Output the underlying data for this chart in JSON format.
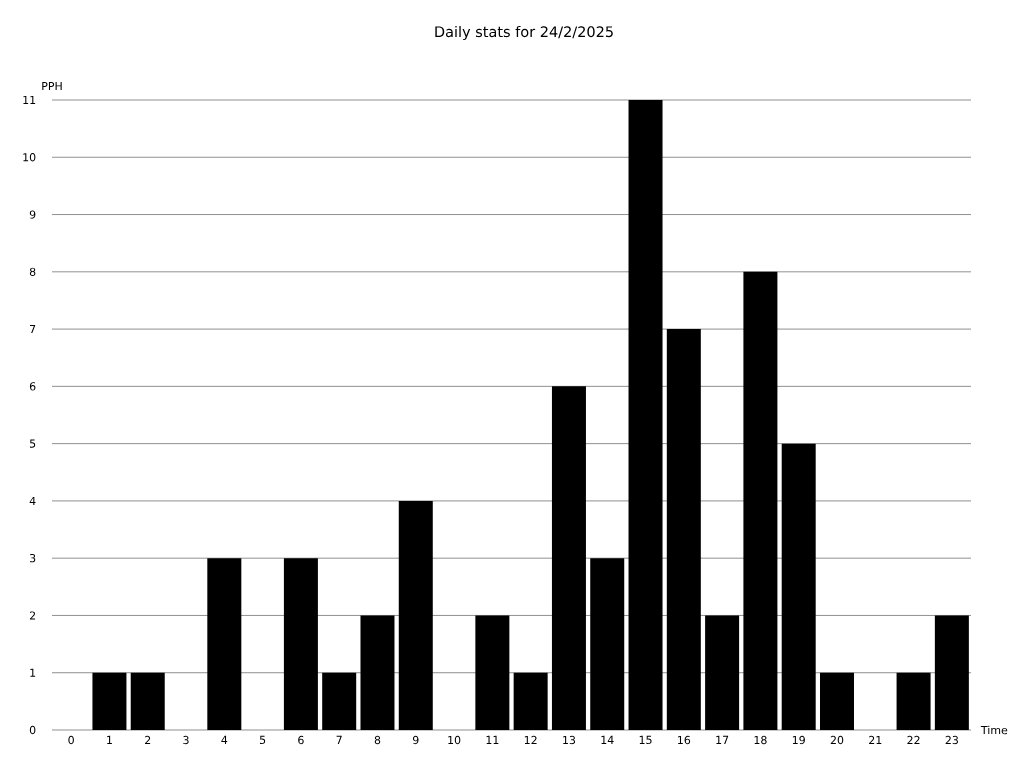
{
  "chart_data": {
    "type": "bar",
    "title": "Daily stats for 24/2/2025",
    "xlabel": "Time",
    "ylabel": "PPH",
    "categories": [
      "0",
      "1",
      "2",
      "3",
      "4",
      "5",
      "6",
      "7",
      "8",
      "9",
      "10",
      "11",
      "12",
      "13",
      "14",
      "15",
      "16",
      "17",
      "18",
      "19",
      "20",
      "21",
      "22",
      "23"
    ],
    "values": [
      0,
      1,
      1,
      0,
      3,
      0,
      3,
      1,
      2,
      4,
      0,
      2,
      1,
      6,
      3,
      11,
      7,
      2,
      8,
      5,
      1,
      0,
      1,
      2
    ],
    "color": "#000000",
    "ylim": [
      0,
      11
    ],
    "yticks": [
      0,
      1,
      2,
      3,
      4,
      5,
      6,
      7,
      8,
      9,
      10,
      11
    ],
    "grid": "y"
  }
}
